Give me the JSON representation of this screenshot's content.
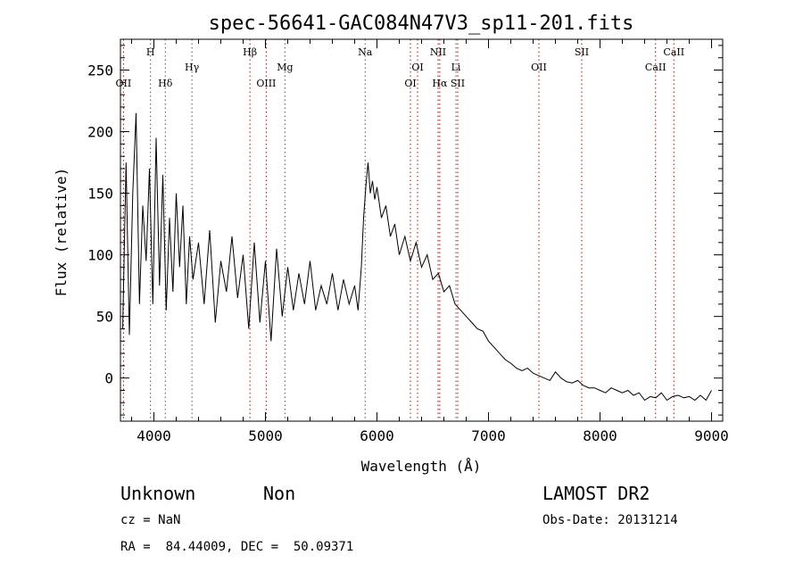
{
  "chart_data": {
    "type": "line",
    "title": "spec-56641-GAC084N47V3_sp11-201.fits",
    "xlabel": "Wavelength (Å)",
    "ylabel": "Flux (relative)",
    "xlim": [
      3700,
      9100
    ],
    "ylim": [
      -35,
      275
    ],
    "xticks": [
      4000,
      5000,
      6000,
      7000,
      8000,
      9000
    ],
    "yticks": [
      0,
      50,
      100,
      150,
      200,
      250
    ],
    "series": [
      {
        "x": [
          3720,
          3750,
          3780,
          3810,
          3840,
          3870,
          3900,
          3930,
          3960,
          3990,
          4020,
          4050,
          4080,
          4110,
          4140,
          4170,
          4200,
          4230,
          4260,
          4290,
          4320,
          4350,
          4400,
          4450,
          4500,
          4550,
          4600,
          4650,
          4700,
          4750,
          4800,
          4850,
          4900,
          4950,
          5000,
          5050,
          5100,
          5150,
          5200,
          5250,
          5300,
          5350,
          5400,
          5450,
          5500,
          5550,
          5600,
          5650,
          5700,
          5750,
          5800,
          5830,
          5860,
          5880,
          5900,
          5920,
          5940,
          5960,
          5980,
          6000,
          6040,
          6080,
          6120,
          6160,
          6200,
          6250,
          6300,
          6350,
          6400,
          6450,
          6500,
          6550,
          6600,
          6650,
          6700,
          6750,
          6800,
          6850,
          6900,
          6950,
          7000,
          7050,
          7100,
          7150,
          7200,
          7250,
          7300,
          7350,
          7400,
          7450,
          7500,
          7550,
          7600,
          7650,
          7700,
          7750,
          7800,
          7850,
          7900,
          7950,
          8000,
          8050,
          8100,
          8150,
          8200,
          8250,
          8300,
          8350,
          8400,
          8450,
          8500,
          8550,
          8600,
          8650,
          8700,
          8750,
          8800,
          8850,
          8900,
          8950,
          9000
        ],
        "y": [
          40,
          175,
          35,
          150,
          215,
          60,
          140,
          95,
          170,
          60,
          195,
          75,
          165,
          55,
          130,
          70,
          150,
          90,
          140,
          60,
          115,
          80,
          110,
          60,
          120,
          45,
          95,
          70,
          115,
          65,
          100,
          40,
          110,
          45,
          95,
          30,
          105,
          50,
          90,
          55,
          85,
          60,
          95,
          55,
          75,
          60,
          85,
          55,
          80,
          60,
          75,
          55,
          90,
          130,
          155,
          175,
          150,
          160,
          145,
          155,
          130,
          140,
          115,
          125,
          100,
          115,
          95,
          110,
          90,
          100,
          80,
          85,
          70,
          75,
          60,
          55,
          50,
          45,
          40,
          38,
          30,
          25,
          20,
          15,
          12,
          8,
          6,
          8,
          4,
          2,
          0,
          -2,
          5,
          0,
          -3,
          -4,
          -2,
          -6,
          -8,
          -8,
          -10,
          -12,
          -8,
          -10,
          -12,
          -10,
          -14,
          -12,
          -18,
          -15,
          -16,
          -12,
          -18,
          -15,
          -14,
          -16,
          -15,
          -18,
          -14,
          -18,
          -10
        ]
      }
    ],
    "lines": [
      {
        "label": "OII",
        "x": 3727,
        "row": 3,
        "color": "#c00000"
      },
      {
        "label": "H",
        "x": 3969,
        "row": 1,
        "color": "#555555"
      },
      {
        "label": "Hδ",
        "x": 4102,
        "row": 3,
        "color": "#555555"
      },
      {
        "label": "Hγ",
        "x": 4341,
        "row": 2,
        "color": "#555555"
      },
      {
        "label": "Hβ",
        "x": 4861,
        "row": 1,
        "color": "#c00000"
      },
      {
        "label": "OIII",
        "x": 5007,
        "row": 3,
        "color": "#c00000"
      },
      {
        "label": "Mg",
        "x": 5175,
        "row": 2,
        "color": "#555555"
      },
      {
        "label": "Na",
        "x": 5894,
        "row": 1,
        "color": "#555555"
      },
      {
        "label": "OI",
        "x": 6300,
        "row": 3,
        "color": "#c00000"
      },
      {
        "label": "OI",
        "x": 6364,
        "row": 2,
        "color": "#c00000"
      },
      {
        "label": "NII",
        "x": 6548,
        "row": 1,
        "color": "#c00000"
      },
      {
        "label": "Hα",
        "x": 6563,
        "row": 3,
        "color": "#c00000"
      },
      {
        "label": "Li",
        "x": 6708,
        "row": 2,
        "color": "#555555"
      },
      {
        "label": "SII",
        "x": 6724,
        "row": 3,
        "color": "#c00000"
      },
      {
        "label": "OII",
        "x": 7452,
        "row": 2,
        "color": "#c00000"
      },
      {
        "label": "SII",
        "x": 7836,
        "row": 1,
        "color": "#c00000"
      },
      {
        "label": "CaII",
        "x": 8498,
        "row": 2,
        "color": "#c00000"
      },
      {
        "label": "CaII",
        "x": 8662,
        "row": 1,
        "color": "#c00000"
      }
    ]
  },
  "info": {
    "class": "Unknown",
    "subclass": "Non",
    "cz": "cz = NaN",
    "coords": "RA =  84.44009, DEC =  50.09371",
    "survey": "LAMOST DR2",
    "obs_date": "Obs-Date: 20131214"
  }
}
